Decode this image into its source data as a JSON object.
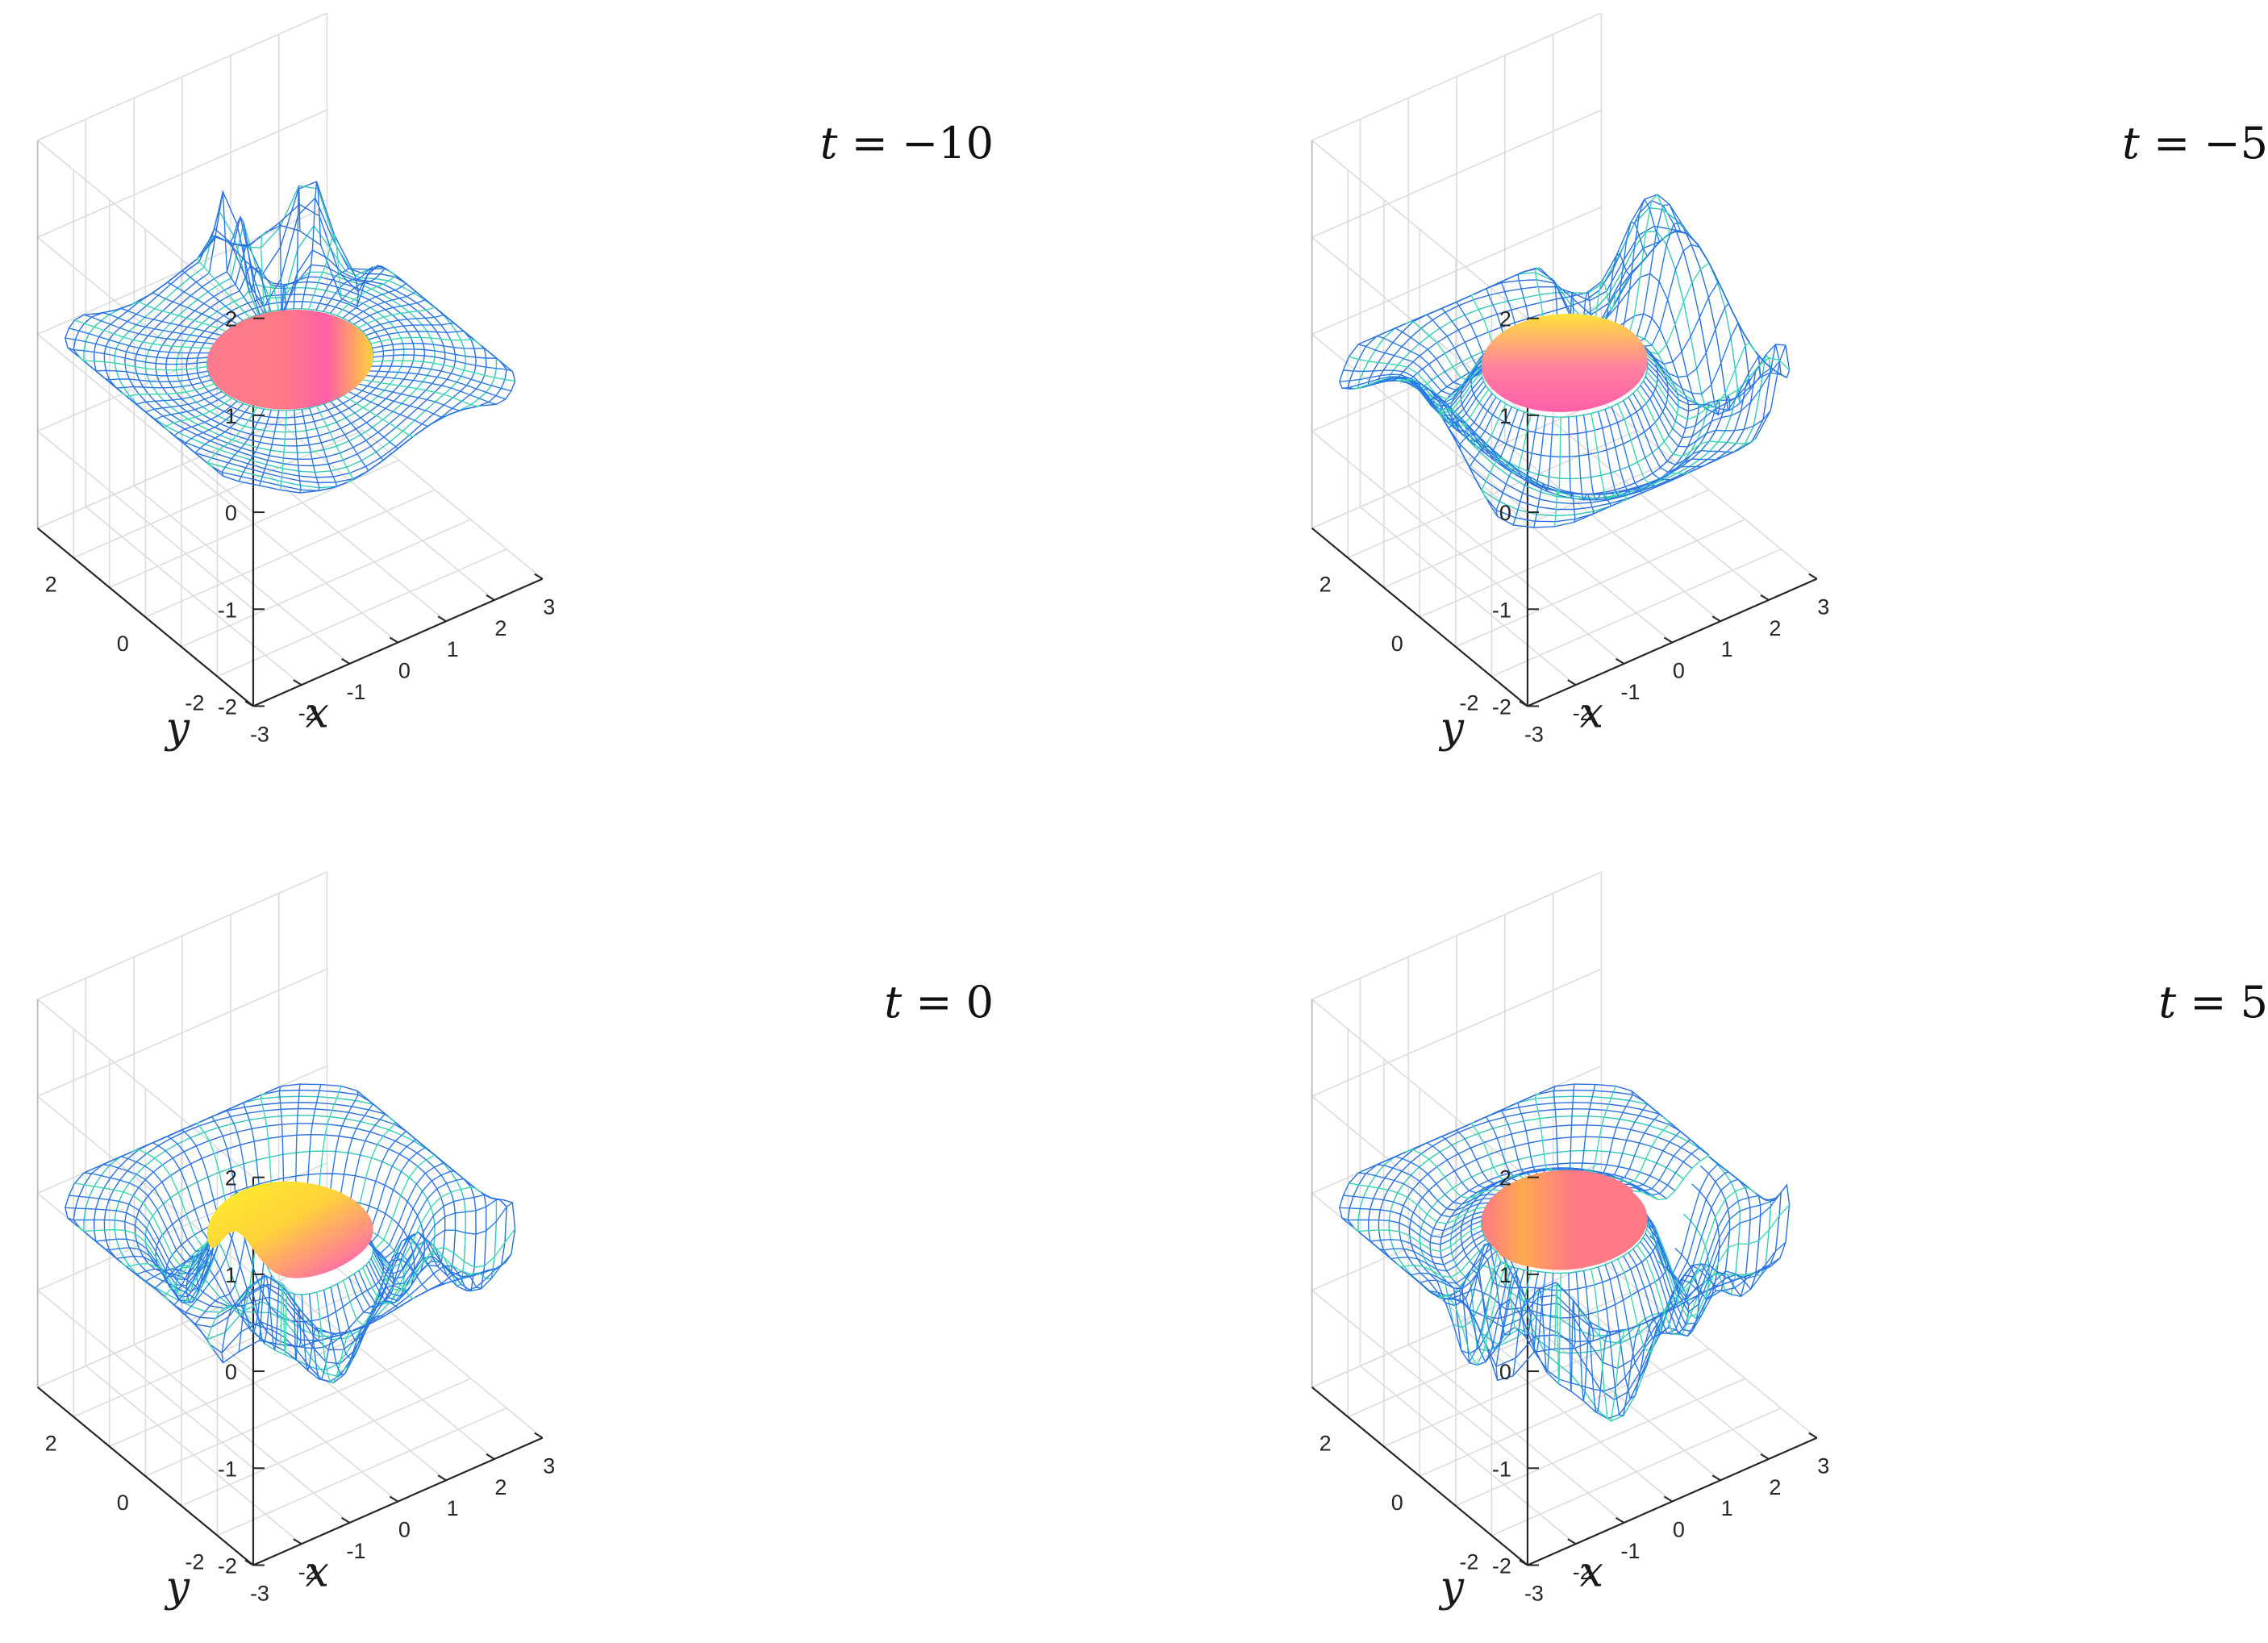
{
  "chart_data": [
    {
      "type": "surface-3d",
      "title": {
        "var": "t",
        "rel": " = ",
        "value": "−10"
      },
      "xlabel": "x",
      "ylabel": "y",
      "zlabel": "",
      "xlim": [
        -3,
        3
      ],
      "ylim": [
        -3,
        3
      ],
      "zlim": [
        -2,
        2
      ],
      "xticks": [
        "-3",
        "-2",
        "-1",
        "0",
        "1",
        "2",
        "3"
      ],
      "yticks": [
        "2",
        "0",
        "-2"
      ],
      "zticks": [
        "2",
        "1",
        "0",
        "-1",
        "-2"
      ],
      "grid": true,
      "t": -10,
      "disc_shape": "flat-disc-with-bump",
      "mesh_colors": [
        "#1f5fd6",
        "#3fe0a8"
      ],
      "disc_colors": [
        "#ff5fa8",
        "#ffe23a"
      ]
    },
    {
      "type": "surface-3d",
      "title": {
        "var": "t",
        "rel": " = ",
        "value": "−5"
      },
      "xlabel": "x",
      "ylabel": "y",
      "zlabel": "",
      "xlim": [
        -3,
        3
      ],
      "ylim": [
        -3,
        3
      ],
      "zlim": [
        -2,
        2
      ],
      "xticks": [
        "-3",
        "-2",
        "-1",
        "0",
        "1",
        "2",
        "3"
      ],
      "yticks": [
        "2",
        "0",
        "-2"
      ],
      "zticks": [
        "2",
        "1",
        "0",
        "-1",
        "-2"
      ],
      "grid": true,
      "t": -5,
      "disc_shape": "rolled-sheet",
      "mesh_colors": [
        "#1f5fd6",
        "#3fe0a8"
      ],
      "disc_colors": [
        "#ff5fa8",
        "#ffe23a"
      ]
    },
    {
      "type": "surface-3d",
      "title": {
        "var": "t",
        "rel": " = ",
        "value": "0"
      },
      "xlabel": "x",
      "ylabel": "y",
      "zlabel": "",
      "xlim": [
        -3,
        3
      ],
      "ylim": [
        -3,
        3
      ],
      "zlim": [
        -2,
        2
      ],
      "xticks": [
        "-3",
        "-2",
        "-1",
        "0",
        "1",
        "2",
        "3"
      ],
      "yticks": [
        "2",
        "0",
        "-2"
      ],
      "zticks": [
        "2",
        "1",
        "0",
        "-1",
        "-2"
      ],
      "grid": true,
      "t": 0,
      "disc_shape": "folded-wave",
      "mesh_colors": [
        "#1f5fd6",
        "#3fe0a8"
      ],
      "disc_colors": [
        "#ff5fa8",
        "#ffe23a"
      ]
    },
    {
      "type": "surface-3d",
      "title": {
        "var": "t",
        "rel": " = ",
        "value": "5"
      },
      "xlabel": "x",
      "ylabel": "y",
      "zlabel": "",
      "xlim": [
        -3,
        3
      ],
      "ylim": [
        -3,
        3
      ],
      "zlim": [
        -2,
        2
      ],
      "xticks": [
        "-3",
        "-2",
        "-1",
        "0",
        "1",
        "2",
        "3"
      ],
      "yticks": [
        "2",
        "0",
        "-2"
      ],
      "zticks": [
        "2",
        "1",
        "0",
        "-1",
        "-2"
      ],
      "grid": true,
      "t": 5,
      "disc_shape": "flat-disc-with-wave",
      "mesh_colors": [
        "#1f5fd6",
        "#3fe0a8"
      ],
      "disc_colors": [
        "#ff5fa8",
        "#ffe23a"
      ]
    }
  ]
}
